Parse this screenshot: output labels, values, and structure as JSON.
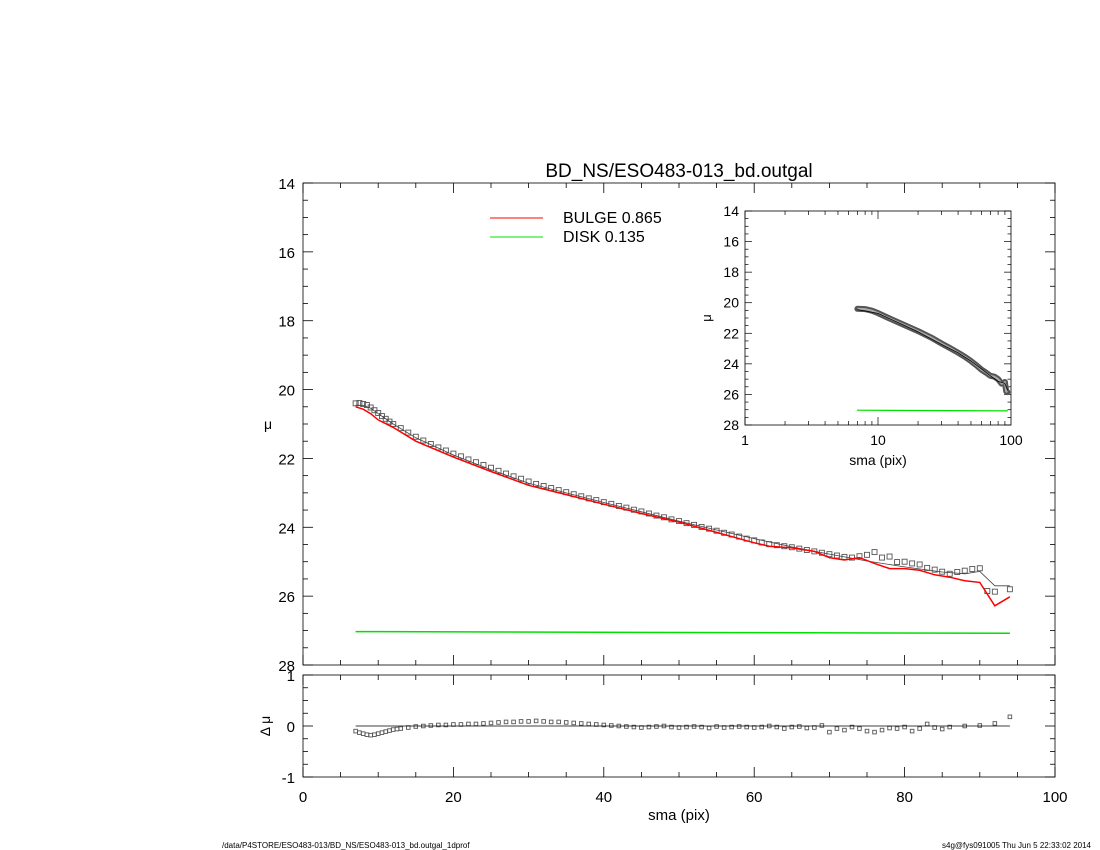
{
  "chart_data": [
    {
      "type": "scatter",
      "title": "BD_NS/ESO483-013_bd.outgal",
      "xlabel": "",
      "ylabel": "μ",
      "xlim": [
        0,
        100
      ],
      "ylim": [
        28,
        14
      ],
      "y_inverted": true,
      "yticks": [
        14,
        16,
        18,
        20,
        22,
        24,
        26,
        28
      ],
      "legend": [
        {
          "name": "BULGE",
          "value": "0.865",
          "color": "#ff0000"
        },
        {
          "name": "DISK",
          "value": "0.135",
          "color": "#00e000"
        }
      ],
      "legend_position": "top-center",
      "series": [
        {
          "name": "data",
          "style": "square-markers",
          "color": "#555555",
          "x": [
            7,
            7.5,
            8,
            8.5,
            9,
            9.5,
            10,
            10.5,
            11,
            11.5,
            12,
            13,
            14,
            15,
            16,
            17,
            18,
            19,
            20,
            21,
            22,
            23,
            24,
            25,
            26,
            27,
            28,
            29,
            30,
            31,
            32,
            33,
            34,
            35,
            36,
            37,
            38,
            39,
            40,
            41,
            42,
            43,
            44,
            45,
            46,
            47,
            48,
            49,
            50,
            51,
            52,
            53,
            54,
            55,
            56,
            57,
            58,
            59,
            60,
            61,
            62,
            63,
            64,
            65,
            66,
            67,
            68,
            69,
            70,
            71,
            72,
            73,
            74,
            75,
            76,
            77,
            78,
            79,
            80,
            81,
            82,
            83,
            84,
            85,
            86,
            87,
            88,
            89,
            90,
            91,
            92,
            94
          ],
          "y": [
            20.4,
            20.39,
            20.42,
            20.45,
            20.52,
            20.6,
            20.68,
            20.77,
            20.85,
            20.93,
            21.0,
            21.12,
            21.25,
            21.37,
            21.48,
            21.58,
            21.68,
            21.77,
            21.86,
            21.94,
            22.03,
            22.11,
            22.19,
            22.27,
            22.36,
            22.44,
            22.52,
            22.59,
            22.67,
            22.74,
            22.8,
            22.86,
            22.92,
            22.98,
            23.04,
            23.1,
            23.16,
            23.21,
            23.27,
            23.32,
            23.38,
            23.43,
            23.49,
            23.54,
            23.6,
            23.66,
            23.71,
            23.77,
            23.82,
            23.88,
            23.93,
            23.99,
            24.04,
            24.1,
            24.16,
            24.21,
            24.27,
            24.33,
            24.38,
            24.44,
            24.49,
            24.52,
            24.55,
            24.58,
            24.62,
            24.66,
            24.7,
            24.74,
            24.78,
            24.82,
            24.86,
            24.88,
            24.84,
            24.8,
            24.72,
            24.88,
            24.85,
            25.01,
            25.0,
            25.05,
            25.08,
            25.18,
            25.23,
            25.29,
            25.35,
            25.3,
            25.26,
            25.21,
            25.19,
            25.85,
            25.87,
            25.8
          ]
        },
        {
          "name": "model",
          "style": "line",
          "color": "#444444",
          "x": [
            7,
            8,
            9,
            10,
            12,
            15,
            20,
            25,
            30,
            35,
            40,
            45,
            50,
            55,
            60,
            65,
            70,
            75,
            80,
            85,
            88,
            90,
            92,
            94
          ],
          "y": [
            20.45,
            20.46,
            20.54,
            20.7,
            21.0,
            21.4,
            21.9,
            22.33,
            22.72,
            23.0,
            23.28,
            23.55,
            23.82,
            24.08,
            24.33,
            24.57,
            24.78,
            24.98,
            25.15,
            25.3,
            25.35,
            25.28,
            25.7,
            25.7
          ]
        },
        {
          "name": "BULGE",
          "style": "line",
          "color": "#ff0000",
          "x": [
            7,
            8,
            9,
            10,
            12,
            15,
            20,
            25,
            30,
            35,
            40,
            45,
            50,
            55,
            60,
            62,
            65,
            68,
            70,
            72,
            74,
            76,
            78,
            80,
            82,
            84,
            86,
            88,
            90,
            92,
            94
          ],
          "y": [
            20.5,
            20.57,
            20.7,
            20.88,
            21.1,
            21.5,
            21.96,
            22.38,
            22.78,
            23.05,
            23.33,
            23.6,
            23.85,
            24.15,
            24.45,
            24.55,
            24.6,
            24.7,
            24.88,
            24.95,
            24.88,
            25.05,
            25.2,
            25.2,
            25.25,
            25.38,
            25.45,
            25.55,
            25.6,
            26.28,
            26.02
          ]
        },
        {
          "name": "DISK",
          "style": "line",
          "color": "#00e000",
          "x": [
            7,
            94
          ],
          "y": [
            27.03,
            27.08
          ]
        }
      ]
    },
    {
      "type": "line",
      "title": "",
      "xlabel": "sma (pix)",
      "ylabel": "μ",
      "xscale": "log",
      "xlim": [
        1,
        100
      ],
      "ylim": [
        28,
        14
      ],
      "y_inverted": true,
      "xticks": [
        1,
        10,
        100
      ],
      "yticks": [
        14,
        16,
        18,
        20,
        22,
        24,
        26,
        28
      ],
      "position": "inset top-right",
      "series": [
        {
          "name": "data",
          "style": "thick-band",
          "color": "#555555",
          "x": [
            7,
            8,
            9,
            10,
            12,
            15,
            20,
            25,
            30,
            35,
            40,
            45,
            50,
            55,
            60,
            65,
            70,
            75,
            80,
            85,
            88,
            90,
            92,
            94
          ],
          "y": [
            20.4,
            20.42,
            20.52,
            20.68,
            21.0,
            21.37,
            21.86,
            22.27,
            22.67,
            22.98,
            23.27,
            23.54,
            23.82,
            24.1,
            24.38,
            24.58,
            24.78,
            24.84,
            25.0,
            25.29,
            25.26,
            25.19,
            25.8,
            25.85
          ]
        },
        {
          "name": "model",
          "style": "line",
          "color": "#000000",
          "x": [
            7,
            10,
            15,
            20,
            30,
            40,
            50,
            60,
            70,
            80,
            90,
            94
          ],
          "y": [
            20.45,
            20.7,
            21.4,
            21.9,
            22.72,
            23.28,
            23.82,
            24.33,
            24.78,
            25.15,
            25.28,
            25.7
          ]
        },
        {
          "name": "DISK",
          "style": "line",
          "color": "#00e000",
          "x": [
            7,
            94
          ],
          "y": [
            27.03,
            27.08
          ]
        }
      ]
    },
    {
      "type": "scatter",
      "title": "",
      "xlabel": "sma (pix)",
      "ylabel": "Δ μ",
      "xlim": [
        0,
        100
      ],
      "ylim": [
        -1,
        1
      ],
      "xticks": [
        0,
        20,
        40,
        60,
        80,
        100
      ],
      "yticks": [
        -1,
        0,
        1
      ],
      "zero_line": true,
      "series": [
        {
          "name": "residual",
          "style": "small-square-markers",
          "color": "#555555",
          "x": [
            7,
            7.5,
            8,
            8.5,
            9,
            9.5,
            10,
            10.5,
            11,
            11.5,
            12,
            12.5,
            13,
            14,
            15,
            16,
            17,
            18,
            19,
            20,
            21,
            22,
            23,
            24,
            25,
            26,
            27,
            28,
            29,
            30,
            31,
            32,
            33,
            34,
            35,
            36,
            37,
            38,
            39,
            40,
            41,
            42,
            43,
            44,
            45,
            46,
            47,
            48,
            49,
            50,
            51,
            52,
            53,
            54,
            55,
            56,
            57,
            58,
            59,
            60,
            61,
            62,
            63,
            64,
            65,
            66,
            67,
            68,
            69,
            70,
            71,
            72,
            73,
            74,
            75,
            76,
            77,
            78,
            79,
            80,
            81,
            82,
            83,
            84,
            85,
            86,
            88,
            90,
            92,
            94
          ],
          "y": [
            -0.1,
            -0.13,
            -0.15,
            -0.17,
            -0.18,
            -0.17,
            -0.15,
            -0.13,
            -0.11,
            -0.09,
            -0.07,
            -0.06,
            -0.05,
            -0.03,
            -0.01,
            0.0,
            0.01,
            0.02,
            0.02,
            0.03,
            0.03,
            0.04,
            0.04,
            0.05,
            0.06,
            0.07,
            0.08,
            0.08,
            0.09,
            0.09,
            0.1,
            0.09,
            0.08,
            0.08,
            0.07,
            0.06,
            0.05,
            0.04,
            0.03,
            0.02,
            0.01,
            0.0,
            -0.01,
            -0.02,
            -0.03,
            -0.02,
            -0.01,
            0.0,
            -0.02,
            -0.03,
            -0.02,
            -0.01,
            -0.02,
            -0.04,
            -0.01,
            -0.03,
            -0.02,
            -0.01,
            -0.02,
            -0.03,
            -0.02,
            0.0,
            -0.02,
            -0.05,
            -0.02,
            -0.01,
            -0.04,
            -0.03,
            0.01,
            -0.12,
            -0.05,
            -0.08,
            -0.02,
            -0.05,
            -0.1,
            -0.12,
            -0.08,
            -0.04,
            -0.05,
            -0.02,
            -0.1,
            -0.05,
            0.04,
            -0.03,
            -0.06,
            -0.02,
            0.0,
            0.01,
            0.05,
            0.18
          ]
        },
        {
          "name": "zero",
          "style": "line",
          "color": "#000000",
          "x": [
            7,
            94
          ],
          "y": [
            0,
            0
          ]
        }
      ]
    }
  ],
  "footer": {
    "path": "/data/P4STORE/ESO483-013/BD_NS/ESO483-013_bd.outgal_1dprof",
    "stamp": "s4g@fys091005  Thu Jun  5 22:33:02 2014"
  }
}
